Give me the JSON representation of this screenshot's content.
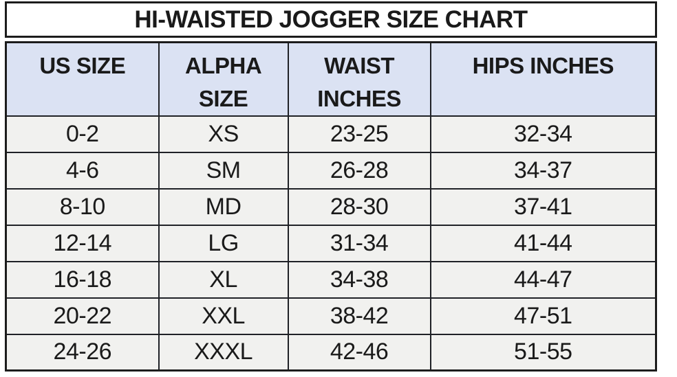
{
  "title": "HI-WAISTED JOGGER SIZE CHART",
  "chart_data": {
    "type": "table",
    "title": "HI-WAISTED JOGGER SIZE CHART",
    "columns": [
      "US SIZE",
      "ALPHA SIZE",
      "WAIST INCHES",
      "HIPS INCHES"
    ],
    "rows": [
      [
        "0-2",
        "XS",
        "23-25",
        "32-34"
      ],
      [
        "4-6",
        "SM",
        "26-28",
        "34-37"
      ],
      [
        "8-10",
        "MD",
        "28-30",
        "37-41"
      ],
      [
        "12-14",
        "LG",
        "31-34",
        "41-44"
      ],
      [
        "16-18",
        "XL",
        "34-38",
        "44-47"
      ],
      [
        "20-22",
        "XXL",
        "38-42",
        "47-51"
      ],
      [
        "24-26",
        "XXXL",
        "42-46",
        "51-55"
      ]
    ],
    "layout": {
      "grid": true,
      "header_align": "top-center",
      "cell_align": "center"
    }
  },
  "colors": {
    "header_bg": "#dbe2f3",
    "row_bg": "#f1f1ef",
    "border": "#1c1c1c",
    "title_bg": "#ffffff",
    "text": "#1a1a1a"
  }
}
